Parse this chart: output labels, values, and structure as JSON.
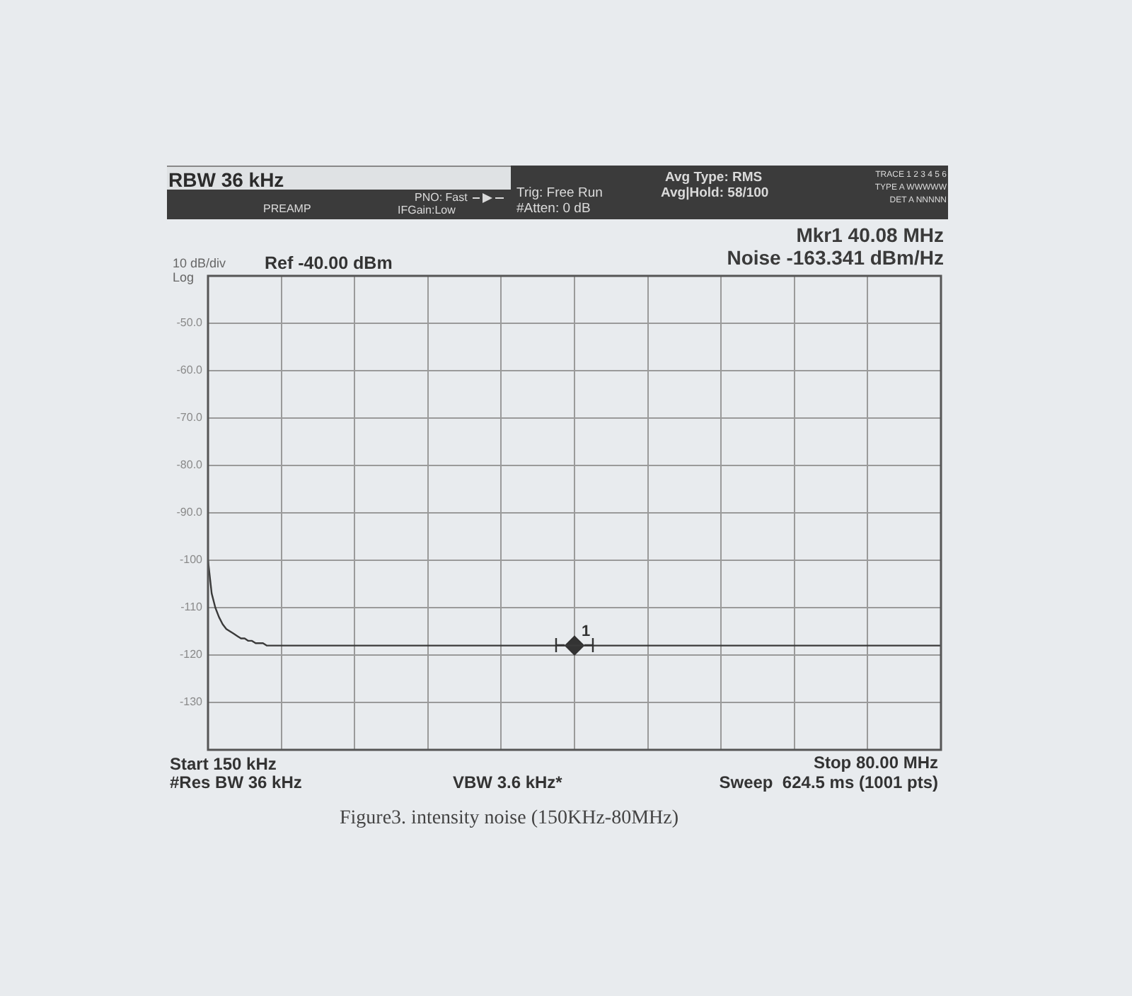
{
  "chart_data": {
    "type": "line",
    "annotations": [
      "RBW 36 kHz",
      "PREAMP",
      "PNO: Fast",
      "IFGain:Low",
      "Trig: Free Run",
      "#Atten: 0 dB",
      "Avg Type: RMS",
      "Avg|Hold: 58/100",
      "TRACE 1 2 3 4 5 6",
      "TYPE A WWWWW",
      "DET A NNNNN",
      "Mkr1 40.08 MHz",
      "Noise -163.341 dBm/Hz",
      "10 dB/div",
      "Log",
      "Ref -40.00 dBm",
      "Start 150 kHz",
      "#Res BW 36 kHz",
      "VBW 3.6 kHz*",
      "Stop 80.00 MHz",
      "Sweep  624.5 ms (1001 pts)",
      "Figure3. intensity noise (150KHz-80MHz)"
    ],
    "categories": [
      null,
      null,
      null,
      null,
      null,
      null,
      null,
      null,
      null,
      null,
      null,
      null,
      null,
      null,
      null,
      null,
      null,
      null,
      null,
      null,
      null,
      null,
      null,
      null,
      null,
      null,
      null,
      null,
      null,
      null,
      null,
      null,
      null,
      null,
      null,
      null,
      null,
      null,
      null,
      null,
      null,
      null,
      null,
      null,
      null,
      null,
      null,
      null,
      null,
      null,
      null,
      null,
      null,
      null,
      null,
      null,
      null,
      null,
      null,
      null,
      null,
      null,
      null,
      null,
      null,
      null,
      null,
      null,
      null,
      null,
      null,
      null,
      null,
      null,
      null,
      null,
      null,
      null,
      null,
      null,
      null,
      null,
      null,
      null,
      null,
      null,
      null,
      null,
      null,
      null,
      null,
      null,
      null,
      null,
      null,
      null,
      null,
      null,
      null,
      null,
      null,
      null,
      null,
      null,
      null,
      null,
      null,
      null,
      null,
      null,
      null,
      null,
      null,
      null,
      null,
      null,
      null,
      null,
      null,
      null,
      null,
      null,
      null,
      null,
      null,
      null,
      null,
      null,
      null,
      null,
      null,
      null,
      null,
      null,
      null,
      null,
      null,
      null,
      null,
      null,
      null,
      null,
      null,
      null,
      null,
      null,
      null,
      null,
      null,
      null,
      null,
      null,
      null,
      null,
      null,
      null,
      null,
      null,
      null,
      null,
      null,
      null,
      null,
      null,
      null,
      null,
      null,
      null,
      null,
      null,
      null,
      null,
      null,
      null,
      null,
      null,
      null,
      null,
      null,
      null,
      null,
      null,
      null,
      null,
      null,
      null,
      null,
      null,
      null,
      null,
      null,
      null,
      null,
      null,
      null,
      null,
      null,
      null,
      null,
      null,
      null
    ],
    "series": [
      {
        "color": "#3a3a3a",
        "values": [
          -100,
          -107,
          -110,
          -112,
          -113.5,
          -114.5,
          -115,
          -115.5,
          -116,
          -116.5,
          -116.5,
          -117,
          -117,
          -117.5,
          -117.5,
          -117.5,
          -118,
          -118,
          -118,
          -118,
          -118,
          -118,
          -118,
          -118,
          -118,
          -118,
          -118,
          -118,
          -118,
          -118,
          -118,
          -118,
          -118,
          -118,
          -118,
          -118,
          -118,
          -118,
          -118,
          -118,
          -118,
          -118,
          -118,
          -118,
          -118,
          -118,
          -118,
          -118,
          -118,
          -118,
          -118,
          -118,
          -118,
          -118,
          -118,
          -118,
          -118,
          -118,
          -118,
          -118,
          -118,
          -118,
          -118,
          -118,
          -118,
          -118,
          -118,
          -118,
          -118,
          -118,
          -118,
          -118,
          -118,
          -118,
          -118,
          -118,
          -118,
          -118,
          -118,
          -118,
          -118,
          -118,
          -118,
          -118,
          -118,
          -118,
          -118,
          -118,
          -118,
          -118,
          -118,
          -118,
          -118,
          -118,
          -118,
          -118,
          -118,
          -118,
          -118,
          -118,
          -118,
          -118,
          -118,
          -118,
          -118,
          -118,
          -118,
          -118,
          -118,
          -118,
          -118,
          -118,
          -118,
          -118,
          -118,
          -118,
          -118,
          -118,
          -118,
          -118,
          -118,
          -118,
          -118,
          -118,
          -118,
          -118,
          -118,
          -118,
          -118,
          -118,
          -118,
          -118,
          -118,
          -118,
          -118,
          -118,
          -118,
          -118,
          -118,
          -118,
          -118,
          -118,
          -118,
          -118,
          -118,
          -118,
          -118,
          -118,
          -118,
          -118,
          -118,
          -118,
          -118,
          -118,
          -118,
          -118,
          -118,
          -118,
          -118,
          -118,
          -118,
          -118,
          -118,
          -118,
          -118,
          -118,
          -118,
          -118,
          -118,
          -118,
          -118,
          -118,
          -118,
          -118,
          -118,
          -118,
          -118,
          -118,
          -118,
          -118,
          -118,
          -118,
          -118,
          -118,
          -118,
          -118,
          -118,
          -118,
          -118,
          -118,
          -118,
          -118,
          -118,
          -118,
          -118,
          -118,
          -118,
          -118,
          -118,
          -118,
          -118
        ]
      },
      {
        "type": "scatter",
        "name": "1",
        "color": "#333333",
        "marker": "diamond",
        "values": [
          null,
          null,
          null,
          null,
          null,
          null,
          null,
          null,
          null,
          null,
          null,
          null,
          null,
          null,
          null,
          null,
          null,
          null,
          null,
          null,
          null,
          null,
          null,
          null,
          null,
          null,
          null,
          null,
          null,
          null,
          null,
          null,
          null,
          null,
          null,
          null,
          null,
          null,
          null,
          null,
          null,
          null,
          null,
          null,
          null,
          null,
          null,
          null,
          null,
          null,
          null,
          null,
          null,
          null,
          null,
          null,
          null,
          null,
          null,
          null,
          null,
          null,
          null,
          null,
          null,
          null,
          null,
          null,
          null,
          null,
          null,
          null,
          null,
          null,
          null,
          null,
          null,
          null,
          null,
          null,
          null,
          null,
          null,
          null,
          null,
          null,
          null,
          null,
          null,
          null,
          null,
          null,
          null,
          null,
          null,
          null,
          null,
          null,
          null,
          null,
          -118,
          null,
          null,
          null,
          null,
          null,
          null,
          null,
          null,
          null,
          null,
          null,
          null,
          null,
          null,
          null,
          null,
          null,
          null,
          null,
          null,
          null,
          null,
          null,
          null,
          null,
          null,
          null,
          null,
          null,
          null,
          null,
          null,
          null,
          null,
          null,
          null,
          null,
          null,
          null,
          null,
          null,
          null,
          null,
          null,
          null,
          null,
          null,
          null,
          null,
          null,
          null,
          null,
          null,
          null,
          null,
          null,
          null,
          null,
          null,
          null,
          null,
          null,
          null,
          null,
          null,
          null,
          null,
          null,
          null,
          null,
          null,
          null,
          null,
          null,
          null,
          null,
          null,
          null,
          null,
          null,
          null,
          null,
          null,
          null,
          null,
          null,
          null,
          null,
          null,
          null,
          null,
          null,
          null,
          null,
          null,
          null,
          null,
          null,
          null,
          null
        ]
      }
    ],
    "ylim": [
      -140,
      -40
    ],
    "yticks": [
      {
        "value": -50,
        "label": "-50.0"
      },
      {
        "value": -60,
        "label": "-60.0"
      },
      {
        "value": -70,
        "label": "-70.0"
      },
      {
        "value": -80,
        "label": "-80.0"
      },
      {
        "value": -90,
        "label": "-90.0"
      },
      -100,
      -110,
      -120,
      -130
    ],
    "grid": true,
    "tick_labels": "y"
  }
}
